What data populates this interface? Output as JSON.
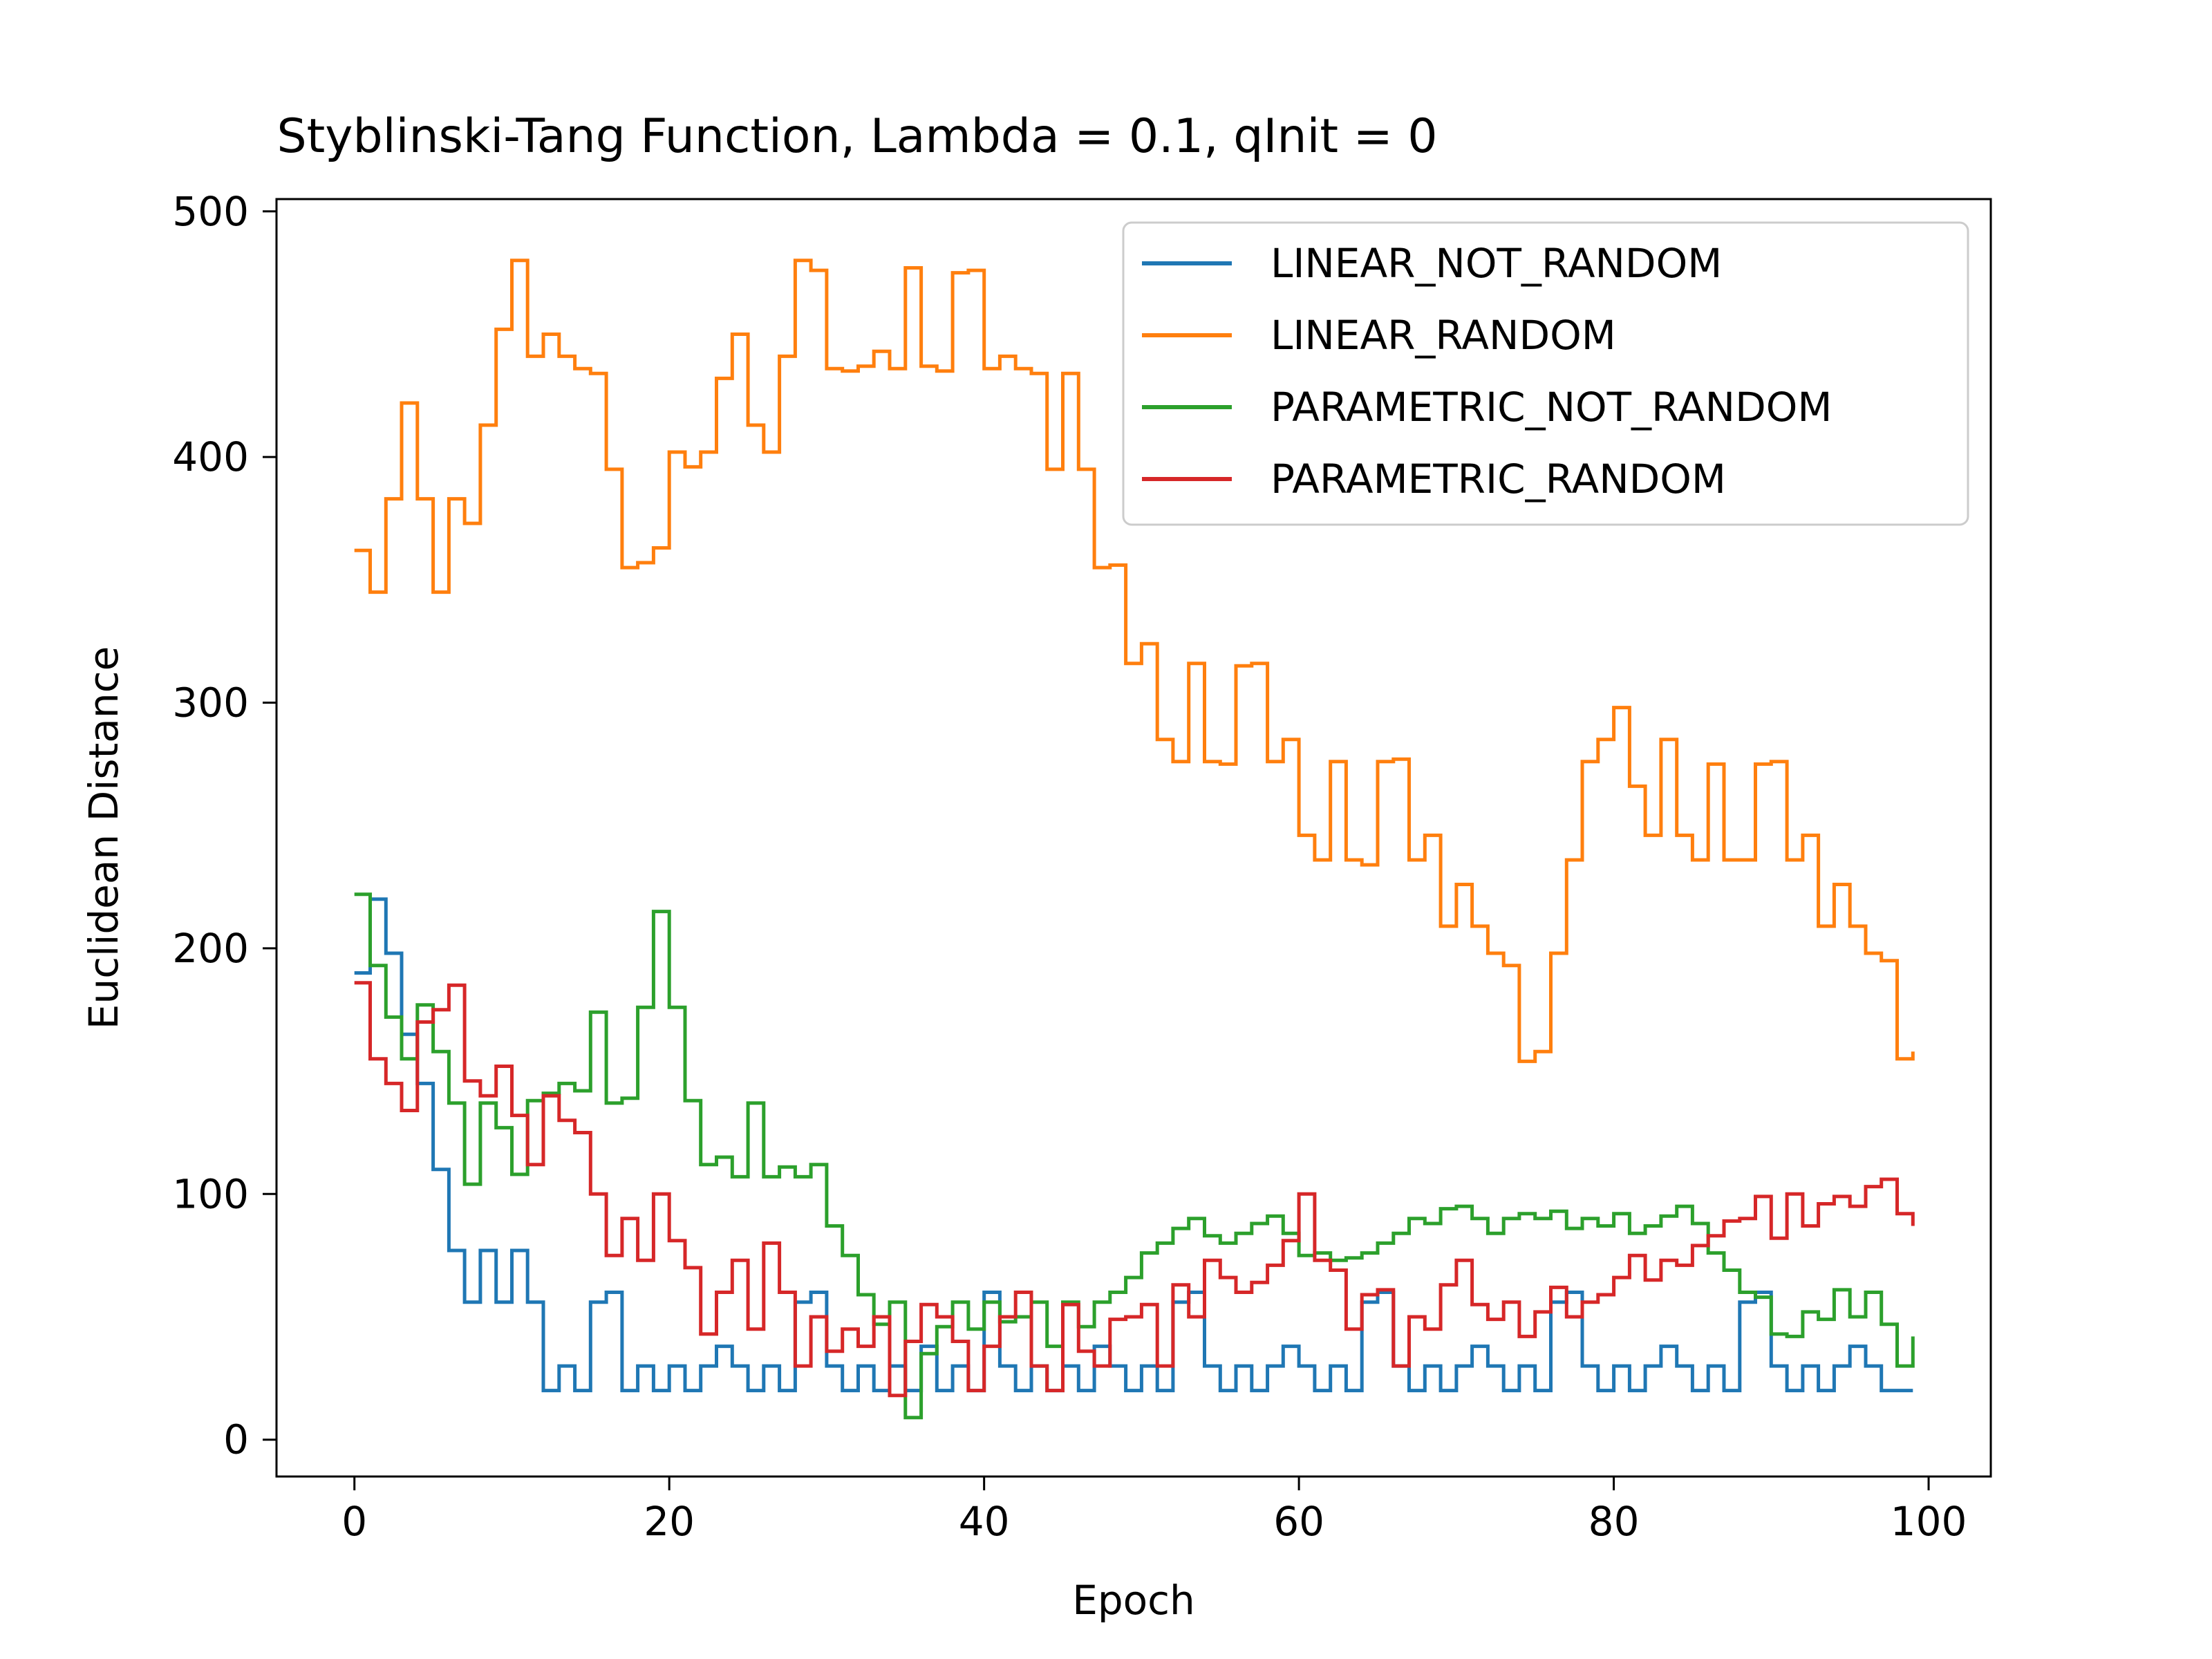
{
  "chart_data": {
    "type": "line",
    "title": "Styblinski-Tang Function, Lambda = 0.1, qInit = 0",
    "xlabel": "Epoch",
    "ylabel": "Euclidean Distance",
    "xlim": [
      -4.95,
      103.95
    ],
    "ylim": [
      -15,
      505
    ],
    "xticks": [
      0,
      20,
      40,
      60,
      80,
      100
    ],
    "yticks": [
      0,
      100,
      200,
      300,
      400,
      500
    ],
    "grid": false,
    "legend_position": "top-right",
    "step": "post",
    "x": [
      0,
      1,
      2,
      3,
      4,
      5,
      6,
      7,
      8,
      9,
      10,
      11,
      12,
      13,
      14,
      15,
      16,
      17,
      18,
      19,
      20,
      21,
      22,
      23,
      24,
      25,
      26,
      27,
      28,
      29,
      30,
      31,
      32,
      33,
      34,
      35,
      36,
      37,
      38,
      39,
      40,
      41,
      42,
      43,
      44,
      45,
      46,
      47,
      48,
      49,
      50,
      51,
      52,
      53,
      54,
      55,
      56,
      57,
      58,
      59,
      60,
      61,
      62,
      63,
      64,
      65,
      66,
      67,
      68,
      69,
      70,
      71,
      72,
      73,
      74,
      75,
      76,
      77,
      78,
      79,
      80,
      81,
      82,
      83,
      84,
      85,
      86,
      87,
      88,
      89,
      90,
      91,
      92,
      93,
      94,
      95,
      96,
      97,
      98,
      99
    ],
    "series": [
      {
        "name": "LINEAR_NOT_RANDOM",
        "color": "#1f77b4",
        "values": [
          190,
          220,
          198,
          165,
          145,
          110,
          77,
          56,
          77,
          56,
          77,
          56,
          20,
          30,
          20,
          56,
          60,
          20,
          30,
          20,
          30,
          20,
          30,
          38,
          30,
          20,
          30,
          20,
          56,
          60,
          30,
          20,
          30,
          20,
          30,
          20,
          38,
          20,
          30,
          20,
          60,
          30,
          20,
          30,
          20,
          30,
          20,
          38,
          30,
          20,
          30,
          20,
          56,
          60,
          30,
          20,
          30,
          20,
          30,
          38,
          30,
          20,
          30,
          20,
          56,
          60,
          30,
          20,
          30,
          20,
          30,
          38,
          30,
          20,
          30,
          20,
          56,
          60,
          30,
          20,
          30,
          20,
          30,
          38,
          30,
          20,
          30,
          20,
          56,
          60,
          30,
          20,
          30,
          20,
          30,
          38,
          30,
          20,
          20,
          20
        ]
      },
      {
        "name": "LINEAR_RANDOM",
        "color": "#ff7f0e",
        "values": [
          362,
          345,
          383,
          422,
          383,
          345,
          383,
          373,
          413,
          452,
          480,
          441,
          450,
          441,
          436,
          434,
          395,
          355,
          357,
          363,
          402,
          396,
          402,
          432,
          450,
          413,
          402,
          441,
          480,
          476,
          436,
          435,
          437,
          443,
          436,
          477,
          437,
          435,
          475,
          476,
          436,
          441,
          436,
          434,
          395,
          434,
          395,
          355,
          356,
          316,
          324,
          285,
          276,
          316,
          276,
          275,
          315,
          316,
          276,
          285,
          246,
          236,
          276,
          236,
          234,
          276,
          277,
          236,
          246,
          209,
          226,
          209,
          198,
          193,
          154,
          158,
          198,
          236,
          276,
          285,
          298,
          266,
          246,
          285,
          246,
          236,
          275,
          236,
          236,
          275,
          276,
          236,
          246,
          209,
          226,
          209,
          198,
          195,
          155,
          158
        ]
      },
      {
        "name": "PARAMETRIC_NOT_RANDOM",
        "color": "#2ca02c",
        "values": [
          222,
          193,
          172,
          155,
          177,
          158,
          137,
          104,
          137,
          127,
          108,
          138,
          141,
          145,
          142,
          174,
          137,
          139,
          176,
          215,
          176,
          138,
          112,
          115,
          107,
          137,
          107,
          111,
          107,
          112,
          87,
          75,
          59,
          47,
          56,
          9,
          35,
          46,
          56,
          45,
          56,
          48,
          50,
          56,
          38,
          56,
          46,
          56,
          60,
          66,
          76,
          80,
          86,
          90,
          83,
          80,
          84,
          88,
          91,
          84,
          75,
          76,
          73,
          74,
          76,
          80,
          84,
          90,
          88,
          94,
          95,
          90,
          84,
          90,
          92,
          90,
          93,
          86,
          90,
          87,
          92,
          84,
          87,
          91,
          95,
          88,
          76,
          69,
          60,
          58,
          43,
          42,
          52,
          49,
          61,
          50,
          60,
          47,
          30,
          42
        ]
      },
      {
        "name": "PARAMETRIC_RANDOM",
        "color": "#d62728",
        "values": [
          186,
          155,
          145,
          134,
          170,
          175,
          185,
          146,
          140,
          152,
          132,
          112,
          140,
          130,
          125,
          100,
          75,
          90,
          73,
          100,
          81,
          70,
          43,
          60,
          73,
          45,
          80,
          60,
          30,
          50,
          36,
          45,
          38,
          50,
          18,
          40,
          55,
          50,
          40,
          20,
          38,
          50,
          60,
          30,
          20,
          55,
          36,
          30,
          49,
          50,
          55,
          30,
          63,
          50,
          73,
          66,
          60,
          64,
          71,
          81,
          100,
          73,
          69,
          45,
          59,
          61,
          30,
          50,
          45,
          63,
          73,
          55,
          49,
          56,
          42,
          52,
          62,
          50,
          56,
          59,
          66,
          75,
          65,
          73,
          71,
          79,
          83,
          89,
          90,
          99,
          82,
          100,
          87,
          96,
          99,
          95,
          103,
          106,
          92,
          87
        ]
      }
    ]
  }
}
